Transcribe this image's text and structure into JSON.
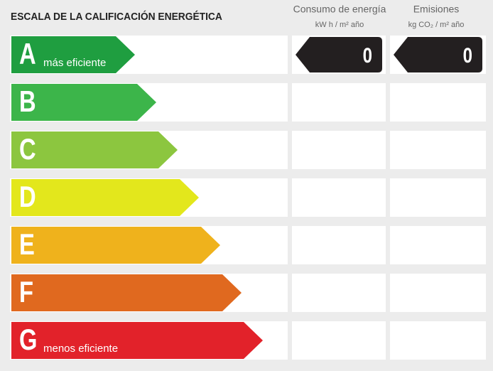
{
  "header": {
    "title": "ESCALA DE LA CALIFICACIÓN ENERGÉTICA"
  },
  "columns": [
    {
      "title": "Consumo de energía",
      "unit": "kW h / m² año"
    },
    {
      "title": "Emisiones",
      "unit": "kg CO₂ / m² año"
    }
  ],
  "rows": [
    {
      "letter": "A",
      "label": "más eficiente",
      "color": "#1f9e40",
      "values": [
        0,
        0
      ]
    },
    {
      "letter": "B",
      "color": "#3cb54a"
    },
    {
      "letter": "C",
      "color": "#8cc63f"
    },
    {
      "letter": "D",
      "color": "#e3e71c"
    },
    {
      "letter": "E",
      "color": "#efb21c"
    },
    {
      "letter": "F",
      "color": "#e0691f"
    },
    {
      "letter": "G",
      "label": "menos eficiente",
      "color": "#e2222a"
    }
  ]
}
